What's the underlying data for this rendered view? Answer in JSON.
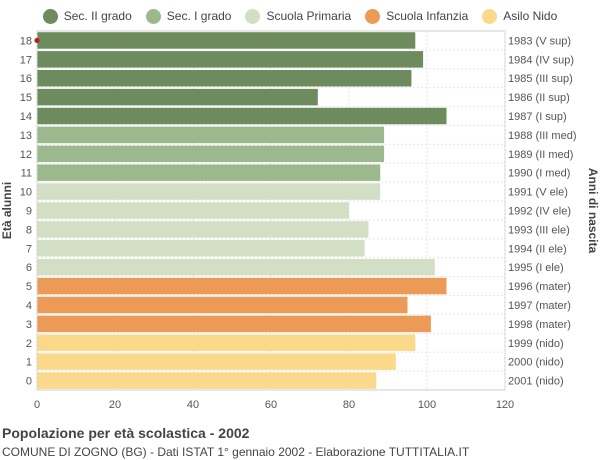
{
  "chart_data": {
    "type": "bar",
    "orientation": "horizontal",
    "title": "Popolazione per età scolastica - 2002",
    "subtitle": "COMUNE DI ZOGNO (BG) - Dati ISTAT 1° gennaio 2002 - Elaborazione TUTTITALIA.IT",
    "ylabel_left": "Età alunni",
    "ylabel_right": "Anni di nascita",
    "xlim": [
      0,
      120
    ],
    "xticks": [
      0,
      20,
      40,
      60,
      80,
      100,
      120
    ],
    "grid": true,
    "legend_position": "top",
    "legend": [
      {
        "name": "Sec. II grado",
        "color": "#6e8b5d"
      },
      {
        "name": "Sec. I grado",
        "color": "#9cb98e"
      },
      {
        "name": "Scuola Primaria",
        "color": "#d3dfc5"
      },
      {
        "name": "Scuola Infanzia",
        "color": "#eb9b55"
      },
      {
        "name": "Asilo Nido",
        "color": "#fbd98a"
      }
    ],
    "rows": [
      {
        "age": "18",
        "birth": "1983 (V sup)",
        "value": 97,
        "group": 0
      },
      {
        "age": "17",
        "birth": "1984 (IV sup)",
        "value": 99,
        "group": 0
      },
      {
        "age": "16",
        "birth": "1985 (III sup)",
        "value": 96,
        "group": 0
      },
      {
        "age": "15",
        "birth": "1986 (II sup)",
        "value": 72,
        "group": 0
      },
      {
        "age": "14",
        "birth": "1987 (I sup)",
        "value": 105,
        "group": 0
      },
      {
        "age": "13",
        "birth": "1988 (III med)",
        "value": 89,
        "group": 1
      },
      {
        "age": "12",
        "birth": "1989 (II med)",
        "value": 89,
        "group": 1
      },
      {
        "age": "11",
        "birth": "1990 (I med)",
        "value": 88,
        "group": 1
      },
      {
        "age": "10",
        "birth": "1991 (V ele)",
        "value": 88,
        "group": 2
      },
      {
        "age": "9",
        "birth": "1992 (IV ele)",
        "value": 80,
        "group": 2
      },
      {
        "age": "8",
        "birth": "1993 (III ele)",
        "value": 85,
        "group": 2
      },
      {
        "age": "7",
        "birth": "1994 (II ele)",
        "value": 84,
        "group": 2
      },
      {
        "age": "6",
        "birth": "1995 (I ele)",
        "value": 102,
        "group": 2
      },
      {
        "age": "5",
        "birth": "1996 (mater)",
        "value": 105,
        "group": 3
      },
      {
        "age": "4",
        "birth": "1997 (mater)",
        "value": 95,
        "group": 3
      },
      {
        "age": "3",
        "birth": "1998 (mater)",
        "value": 101,
        "group": 3
      },
      {
        "age": "2",
        "birth": "1999 (nido)",
        "value": 97,
        "group": 4
      },
      {
        "age": "1",
        "birth": "2000 (nido)",
        "value": 92,
        "group": 4
      },
      {
        "age": "0",
        "birth": "2001 (nido)",
        "value": 87,
        "group": 4
      }
    ]
  }
}
